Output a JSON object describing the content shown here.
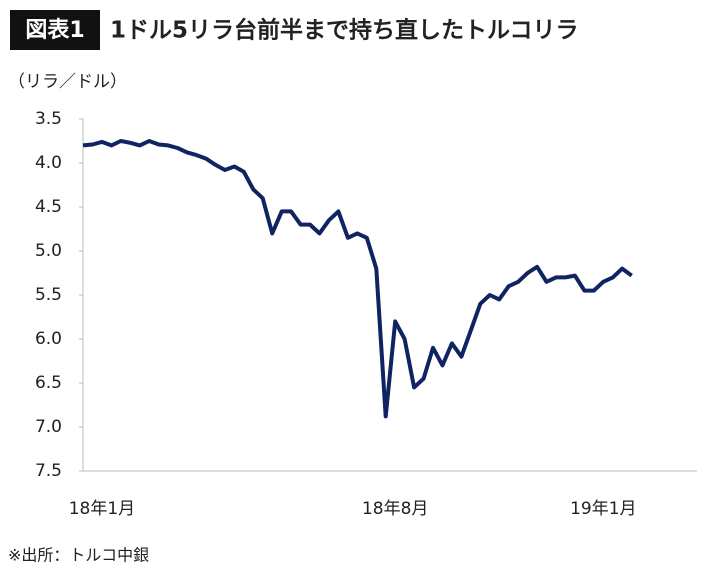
{
  "chart_data": {
    "type": "line",
    "figure_label": "図表1",
    "title": "1ドル5リラ台前半まで持ち直したトルコリラ",
    "ylabel": "（リラ／ドル）",
    "source": "※出所：トルコ中銀",
    "color": "#0f2461",
    "y_inverted": true,
    "ylim": [
      3.5,
      7.5
    ],
    "yticks": [
      3.5,
      {
        "value": 4,
        "label": "4.0"
      },
      4.5,
      {
        "value": 5,
        "label": "5.0"
      },
      5.5,
      {
        "value": 6,
        "label": "6.0"
      },
      6.5,
      {
        "value": 7,
        "label": "7.0"
      },
      7.5
    ],
    "categories": [
      null,
      null,
      "18年1月",
      null,
      null,
      null,
      null,
      null,
      null,
      null,
      null,
      null,
      null,
      null,
      null,
      null,
      null,
      null,
      null,
      null,
      null,
      null,
      null,
      null,
      null,
      null,
      null,
      null,
      null,
      null,
      null,
      null,
      null,
      "18年8月",
      null,
      null,
      null,
      null,
      null,
      null,
      null,
      null,
      null,
      null,
      null,
      null,
      null,
      null,
      null,
      null,
      null,
      null,
      null,
      null,
      null,
      "19年1月",
      null,
      null,
      null
    ],
    "values": [
      3.8,
      3.79,
      3.76,
      3.8,
      3.75,
      3.77,
      3.8,
      3.75,
      3.79,
      3.8,
      3.83,
      3.88,
      3.91,
      3.95,
      4.02,
      4.08,
      4.04,
      4.1,
      4.3,
      4.4,
      4.8,
      4.55,
      4.55,
      4.7,
      4.7,
      4.8,
      4.65,
      4.55,
      4.85,
      4.8,
      4.85,
      5.2,
      6.88,
      5.8,
      6.0,
      6.55,
      6.45,
      6.1,
      6.3,
      6.05,
      6.2,
      5.9,
      5.6,
      5.5,
      5.55,
      5.4,
      5.35,
      5.25,
      5.18,
      5.35,
      5.3,
      5.3,
      5.28,
      5.45,
      5.45,
      5.35,
      5.3,
      5.2,
      5.28
    ]
  }
}
